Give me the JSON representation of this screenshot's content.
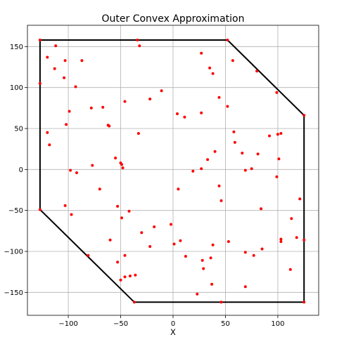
{
  "chart_data": {
    "type": "scatter",
    "title": "Outer Convex Approximation",
    "xlabel": "X",
    "ylabel": "",
    "xlim": [
      -139,
      139
    ],
    "ylim": [
      -178,
      176
    ],
    "xticks": [
      -100,
      -50,
      0,
      50,
      100
    ],
    "yticks": [
      -150,
      -100,
      -50,
      0,
      50,
      100,
      150
    ],
    "grid": true,
    "colors": {
      "points": "#ff0000",
      "hull": "#000000"
    },
    "hull": [
      [
        -127,
        158
      ],
      [
        52,
        158
      ],
      [
        125,
        66
      ],
      [
        125,
        -162
      ],
      [
        -37,
        -162
      ],
      [
        -127,
        -49
      ],
      [
        -127,
        158
      ]
    ],
    "points": [
      [
        -127,
        158
      ],
      [
        -112,
        151
      ],
      [
        -34,
        158
      ],
      [
        -32,
        151
      ],
      [
        52,
        158
      ],
      [
        -120,
        137
      ],
      [
        -113,
        123
      ],
      [
        -103,
        133
      ],
      [
        -87,
        133
      ],
      [
        -104,
        112
      ],
      [
        -127,
        105
      ],
      [
        -93,
        101
      ],
      [
        -11,
        96
      ],
      [
        27,
        142
      ],
      [
        35,
        124
      ],
      [
        38,
        117
      ],
      [
        57,
        133
      ],
      [
        80,
        120
      ],
      [
        99,
        94
      ],
      [
        44,
        88
      ],
      [
        -46,
        83
      ],
      [
        -22,
        86
      ],
      [
        -67,
        76
      ],
      [
        -78,
        75
      ],
      [
        -99,
        71
      ],
      [
        -102,
        55
      ],
      [
        -62,
        54
      ],
      [
        -61,
        53
      ],
      [
        -33,
        44
      ],
      [
        -120,
        45
      ],
      [
        -118,
        30
      ],
      [
        4,
        68
      ],
      [
        11,
        64
      ],
      [
        27,
        69
      ],
      [
        52,
        77
      ],
      [
        58,
        46
      ],
      [
        59,
        33
      ],
      [
        66,
        20
      ],
      [
        81,
        19
      ],
      [
        92,
        41
      ],
      [
        100,
        43
      ],
      [
        103,
        44
      ],
      [
        125,
        66
      ],
      [
        101,
        13
      ],
      [
        40,
        22
      ],
      [
        33,
        12
      ],
      [
        27,
        1
      ],
      [
        19,
        -2
      ],
      [
        -55,
        14
      ],
      [
        -50,
        8
      ],
      [
        -49,
        6
      ],
      [
        -48,
        2
      ],
      [
        -77,
        5
      ],
      [
        -98,
        -1
      ],
      [
        -92,
        -4
      ],
      [
        -70,
        -24
      ],
      [
        5,
        -24
      ],
      [
        44,
        -20
      ],
      [
        69,
        -1
      ],
      [
        75,
        1
      ],
      [
        99,
        -9
      ],
      [
        -103,
        -44
      ],
      [
        -97,
        -55
      ],
      [
        -53,
        -45
      ],
      [
        -49,
        -59
      ],
      [
        -42,
        -51
      ],
      [
        46,
        -38
      ],
      [
        84,
        -48
      ],
      [
        113,
        -60
      ],
      [
        121,
        -36
      ],
      [
        -60,
        -86
      ],
      [
        -30,
        -77
      ],
      [
        -18,
        -70
      ],
      [
        -2,
        -67
      ],
      [
        1,
        -91
      ],
      [
        7,
        -87
      ],
      [
        38,
        -92
      ],
      [
        53,
        -88
      ],
      [
        69,
        -101
      ],
      [
        77,
        -105
      ],
      [
        85,
        -97
      ],
      [
        103,
        -85
      ],
      [
        103,
        -88
      ],
      [
        118,
        -83
      ],
      [
        125,
        -86
      ],
      [
        -22,
        -94
      ],
      [
        -81,
        -105
      ],
      [
        -53,
        -113
      ],
      [
        -46,
        -105
      ],
      [
        -50,
        -135
      ],
      [
        -46,
        -131
      ],
      [
        -41,
        -130
      ],
      [
        -36,
        -129
      ],
      [
        12,
        -106
      ],
      [
        28,
        -111
      ],
      [
        29,
        -121
      ],
      [
        36,
        -108
      ],
      [
        37,
        -140
      ],
      [
        23,
        -152
      ],
      [
        69,
        -143
      ],
      [
        112,
        -122
      ],
      [
        46,
        -162
      ],
      [
        125,
        -162
      ],
      [
        -37,
        -162
      ],
      [
        -127,
        -49
      ]
    ]
  }
}
